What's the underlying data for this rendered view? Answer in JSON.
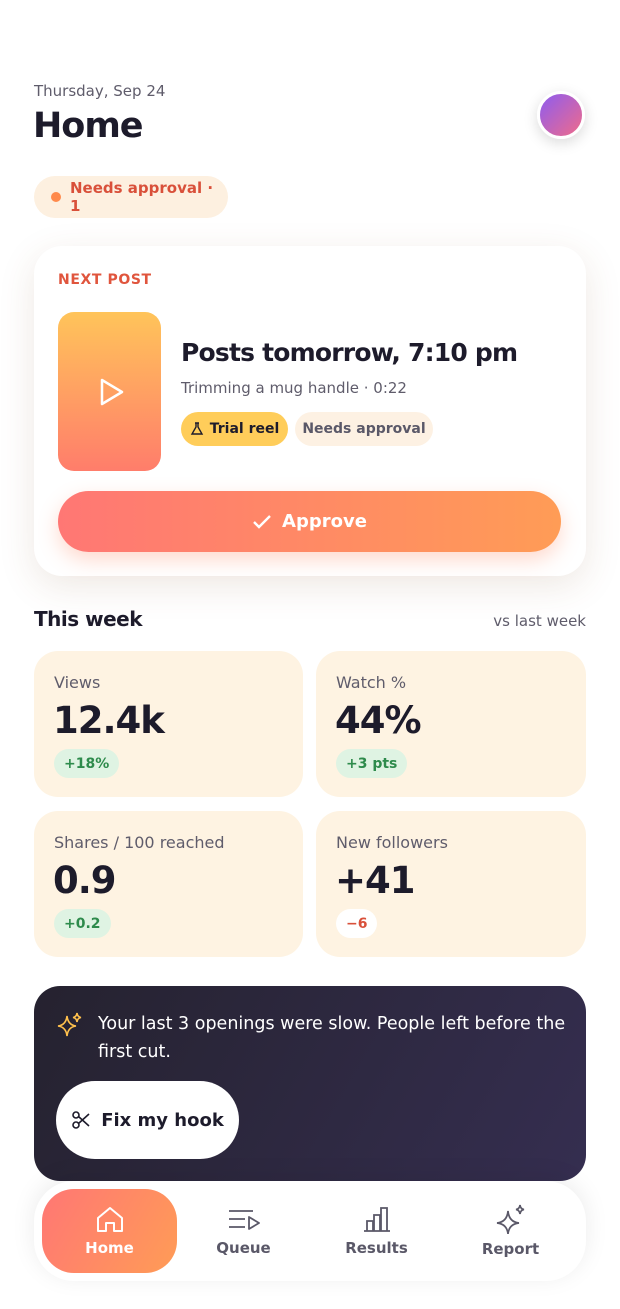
{
  "header": {
    "date": "Thursday, Sep 24",
    "title": "Home",
    "status": "Needs approval · 1"
  },
  "next_post": {
    "label": "NEXT POST",
    "title": "Posts tomorrow, 7:10 pm",
    "subtitle": "Trimming a mug handle · 0:22",
    "tags": [
      "Trial reel",
      "Needs approval"
    ],
    "action": "Approve"
  },
  "week": {
    "title": "This week",
    "compare": "vs last week",
    "stats": [
      {
        "label": "Views",
        "value": "12.4k",
        "change": "+18%"
      },
      {
        "label": "Watch %",
        "value": "44%",
        "change": "+3 pts"
      },
      {
        "label": "Shares / 100 reached",
        "value": "0.9",
        "change": "+0.2"
      },
      {
        "label": "New followers",
        "value": "+41",
        "change": "−6"
      }
    ]
  },
  "insight": {
    "text": "Your last 3 openings were slow. People left before the first cut.",
    "action": "Fix my hook"
  },
  "nav": [
    "Home",
    "Queue",
    "Results",
    "Report"
  ]
}
